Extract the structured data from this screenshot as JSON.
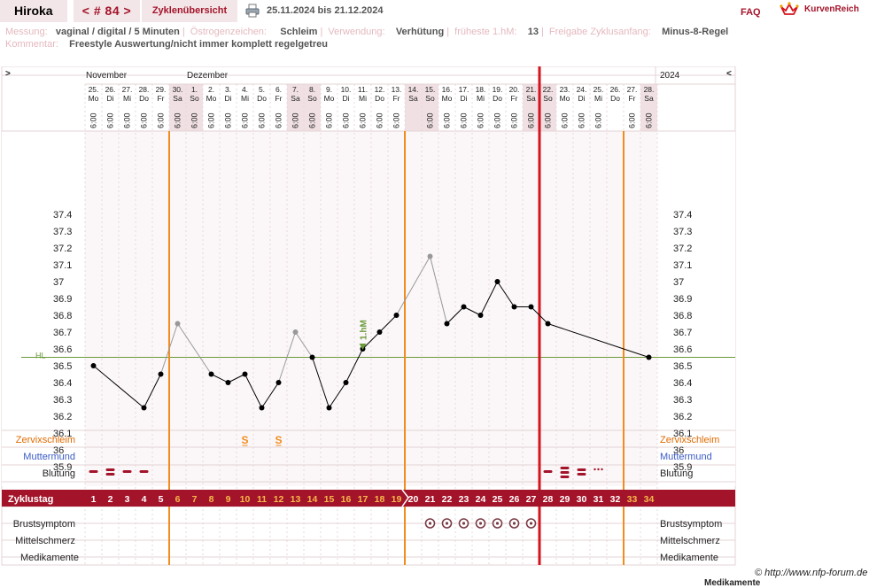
{
  "header": {
    "user_name": "Hiroka",
    "cycle_nav": "< # 84 >",
    "overview_tab": "Zyklenübersicht",
    "print_icon": "printer-icon",
    "date_range": "25.11.2024 bis 21.12.2024",
    "faq": "FAQ",
    "logo_icon": "crown-icon",
    "logo_text": "KurvenReich"
  },
  "info": {
    "messung_label": "Messung:",
    "messung_value": "vaginal / digital / 5 Minuten",
    "oestrogen_label": "Östrogenzeichen:",
    "oestrogen_value": "Schleim",
    "verwendung_label": "Verwendung:",
    "verwendung_value": "Verhütung",
    "fruehe_label": "früheste 1.hM:",
    "fruehe_value": "13",
    "freigabe_label": "Freigabe Zyklusanfang:",
    "freigabe_value": "Minus-8-Regel",
    "kommentar_label": "Kommentar:",
    "kommentar_value": "Freestyle Auswertung/nicht immer komplett regelgetreu"
  },
  "chart_data": {
    "type": "line",
    "title": "",
    "nav_prev": ">",
    "nav_next": "<",
    "year": "2024",
    "months": [
      {
        "label": "November",
        "day_index": 0
      },
      {
        "label": "Dezember",
        "day_index": 6
      }
    ],
    "dates": [
      "25.",
      "26.",
      "27.",
      "28.",
      "29.",
      "30.",
      "1.",
      "2.",
      "3.",
      "4.",
      "5.",
      "6.",
      "7.",
      "8.",
      "9.",
      "10.",
      "11.",
      "12.",
      "13.",
      "14.",
      "15.",
      "16.",
      "17.",
      "18.",
      "19.",
      "20.",
      "21.",
      "22.",
      "23.",
      "24.",
      "25.",
      "26.",
      "27.",
      "28."
    ],
    "weekdays": [
      "Mo",
      "Di",
      "Mi",
      "Do",
      "Fr",
      "Sa",
      "So",
      "Mo",
      "Di",
      "Mi",
      "Do",
      "Fr",
      "Sa",
      "So",
      "Mo",
      "Di",
      "Mi",
      "Do",
      "Fr",
      "Sa",
      "So",
      "Mo",
      "Di",
      "Mi",
      "Do",
      "Fr",
      "Sa",
      "So",
      "Mo",
      "Di",
      "Mi",
      "Do",
      "Fr",
      "Sa"
    ],
    "times": [
      "6:00",
      "6:00",
      "6:00",
      "6:00",
      "6:00",
      "6:00",
      "6:00",
      "6:00",
      "6:00",
      "6:00",
      "6:00",
      "6:00",
      "6:00",
      "6:00",
      "6:00",
      "6:00",
      "6:00",
      "6:00",
      "6:00",
      "",
      "6:00",
      "6:00",
      "6:00",
      "6:00",
      "6:00",
      "6:00",
      "6:00",
      "6:00",
      "6:00",
      "6:00",
      "6:00",
      "",
      "6:00",
      "6:00"
    ],
    "weekend_days": [
      5,
      6,
      12,
      13,
      19,
      20,
      26,
      27,
      33
    ],
    "temperatures": [
      36.5,
      null,
      null,
      36.25,
      36.45,
      36.75,
      null,
      36.45,
      36.4,
      36.45,
      36.25,
      36.4,
      36.7,
      36.55,
      36.25,
      36.4,
      36.6,
      36.7,
      36.8,
      null,
      37.15,
      36.75,
      36.85,
      36.8,
      37.0,
      36.85,
      36.85,
      36.75,
      null,
      null,
      null,
      null,
      null,
      36.55
    ],
    "excluded_days": [
      5,
      12,
      20
    ],
    "y_ticks": [
      "37.4",
      "37.3",
      "37.2",
      "37.1",
      "37",
      "36.9",
      "36.8",
      "36.7",
      "36.6",
      "36.5",
      "36.4",
      "36.3",
      "36.2",
      "36.1",
      "36",
      "35.9"
    ],
    "ylim": [
      35.8,
      37.5
    ],
    "hl_label": "HL",
    "hl_value": 36.55,
    "hm_marker": {
      "label": "1.hM",
      "day_index": 16
    },
    "orange_lines_after_day": [
      4,
      18,
      31
    ],
    "red_line_after_day": 26,
    "rows": {
      "zervix": "Zervixschleim",
      "muttermund": "Muttermund",
      "blutung": "Blutung",
      "zyklustag": "Zyklustag",
      "brust": "Brustsymptom",
      "mittel": "Mittelschmerz",
      "medi": "Medikamente"
    },
    "cervix_marks": [
      {
        "day_index": 9,
        "symbol": "S"
      },
      {
        "day_index": 11,
        "symbol": "S"
      }
    ],
    "bleeding": [
      {
        "day_index": 0,
        "level": "light"
      },
      {
        "day_index": 1,
        "level": "medium"
      },
      {
        "day_index": 2,
        "level": "light"
      },
      {
        "day_index": 3,
        "level": "light"
      },
      {
        "day_index": 27,
        "level": "light"
      },
      {
        "day_index": 28,
        "level": "heavy"
      },
      {
        "day_index": 29,
        "level": "medium"
      },
      {
        "day_index": 30,
        "level": "spotting"
      }
    ],
    "cycle_days": [
      "1",
      "2",
      "3",
      "4",
      "5",
      "6",
      "7",
      "8",
      "9",
      "10",
      "11",
      "12",
      "13",
      "14",
      "15",
      "16",
      "17",
      "18",
      "19",
      "20",
      "21",
      "22",
      "23",
      "24",
      "25",
      "26",
      "27",
      "28",
      "29",
      "30",
      "31",
      "32",
      "33",
      "34"
    ],
    "breast_days": [
      20,
      21,
      22,
      23,
      24,
      25,
      26
    ],
    "colors": {
      "accent": "#a3142a",
      "orange": "#f28c1e",
      "red_line": "#d4141e",
      "hl_line": "#6a9a3a",
      "weekend": "#f0e0e3",
      "grid": "#e7d7da"
    }
  },
  "footer": {
    "copyright": "© http://www.nfp-forum.de",
    "cutoff_text": "Medikamente"
  }
}
